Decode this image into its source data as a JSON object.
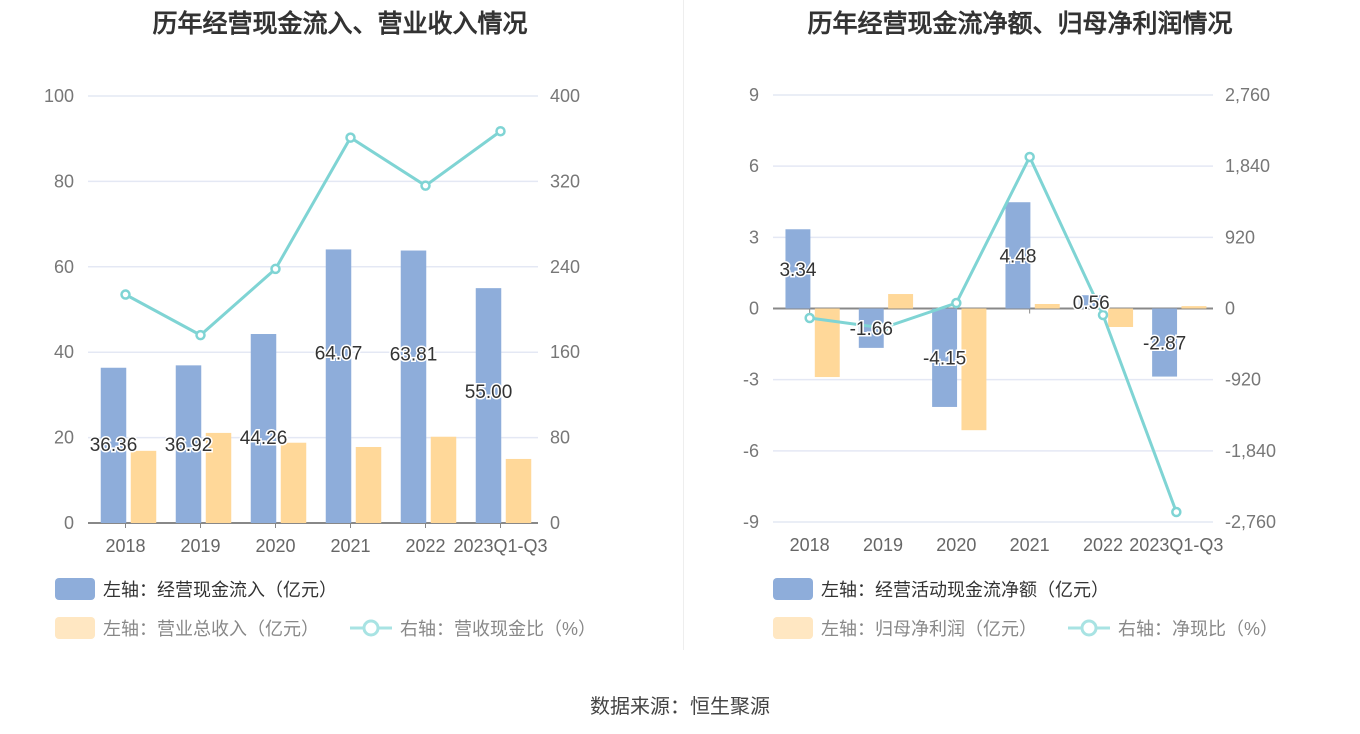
{
  "colors": {
    "blue": "#8eadda",
    "orange": "#ffd899",
    "line": "#7fd4d4",
    "grid": "#e4e8f4"
  },
  "chart_data": [
    {
      "type": "bar+line",
      "title": "历年经营现金流入、营业收入情况",
      "categories": [
        "2018",
        "2019",
        "2020",
        "2021",
        "2022",
        "2023Q1-Q3"
      ],
      "left_axis": {
        "ylim": [
          0,
          100
        ],
        "ticks": [
          "0",
          "20",
          "40",
          "60",
          "80",
          "100"
        ]
      },
      "right_axis": {
        "ylim": [
          0,
          400
        ],
        "ticks": [
          "0",
          "80",
          "160",
          "240",
          "320",
          "400"
        ]
      },
      "series": [
        {
          "name": "左轴：经营现金流入（亿元）",
          "axis": "left",
          "kind": "bar",
          "values": [
            36.36,
            36.92,
            44.26,
            64.07,
            63.81,
            55.0
          ],
          "labels": [
            "36.36",
            "36.92",
            "44.26",
            "64.07",
            "63.81",
            "55.00"
          ]
        },
        {
          "name": "左轴：营业总收入（亿元）",
          "axis": "left",
          "kind": "bar",
          "values": [
            16.9,
            21.1,
            18.8,
            17.8,
            20.2,
            15.0
          ]
        },
        {
          "name": "右轴：营收现金比（%）",
          "axis": "right",
          "kind": "line",
          "values": [
            214,
            176,
            238,
            361,
            316,
            367
          ]
        }
      ]
    },
    {
      "type": "bar+line",
      "title": "历年经营现金流净额、归母净利润情况",
      "categories": [
        "2018",
        "2019",
        "2020",
        "2021",
        "2022",
        "2023Q1-Q3"
      ],
      "left_axis": {
        "ylim": [
          -9,
          9
        ],
        "ticks": [
          "-9",
          "-6",
          "-3",
          "0",
          "3",
          "6",
          "9"
        ]
      },
      "right_axis": {
        "ylim": [
          -2760,
          2760
        ],
        "ticks": [
          "-2,760",
          "-1,840",
          "-920",
          "0",
          "920",
          "1,840",
          "2,760"
        ]
      },
      "series": [
        {
          "name": "左轴：经营活动现金流净额（亿元）",
          "axis": "left",
          "kind": "bar",
          "values": [
            3.34,
            -1.66,
            -4.15,
            4.48,
            0.56,
            -2.87
          ],
          "labels": [
            "3.34",
            "-1.66",
            "-4.15",
            "4.48",
            "0.56",
            "-2.87"
          ]
        },
        {
          "name": "左轴：归母净利润（亿元）",
          "axis": "left",
          "kind": "bar",
          "values": [
            -2.89,
            0.61,
            -5.13,
            0.19,
            -0.78,
            0.1
          ]
        },
        {
          "name": "右轴：净现比（%）",
          "axis": "right",
          "kind": "line",
          "values": [
            -123,
            -252,
            71,
            1959,
            -84,
            -2631
          ]
        }
      ]
    }
  ],
  "source": "数据来源：恒生聚源"
}
